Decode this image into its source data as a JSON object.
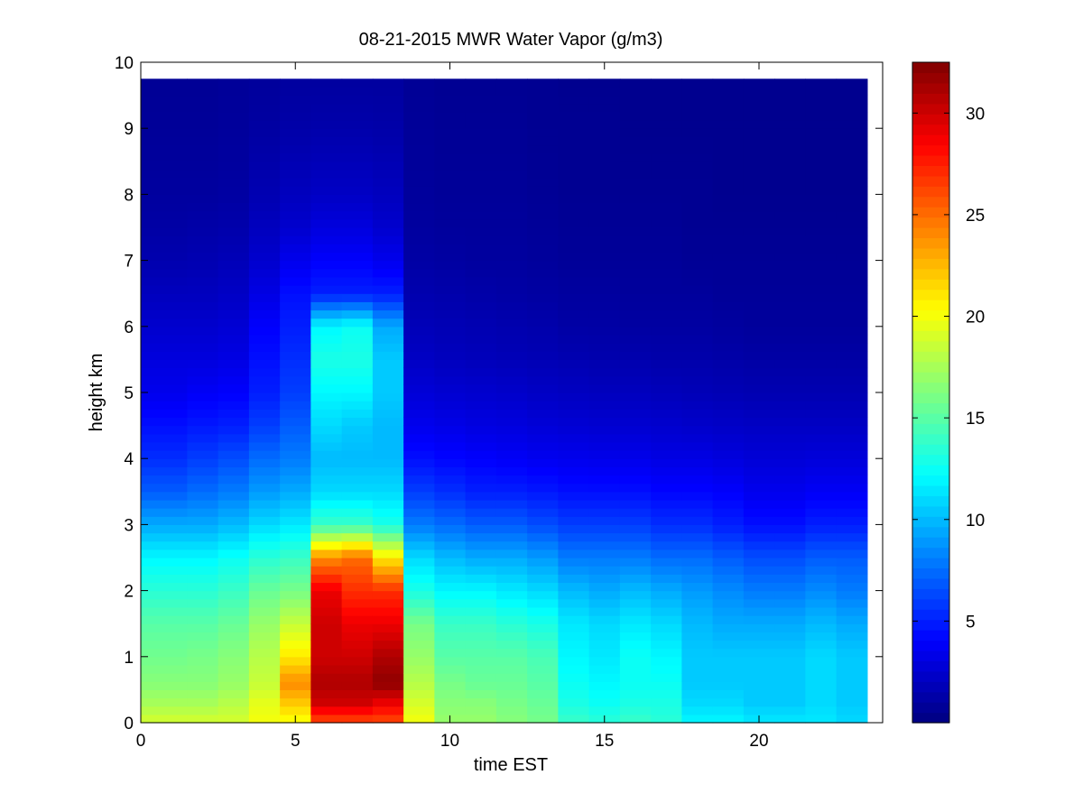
{
  "chart_data": {
    "type": "heatmap",
    "title": "08-21-2015 MWR Water Vapor (g/m3)",
    "xlabel": "time EST",
    "ylabel": "height km",
    "xlim": [
      0,
      24
    ],
    "ylim": [
      0,
      10
    ],
    "x_ticks": [
      0,
      5,
      10,
      15,
      20
    ],
    "y_ticks": [
      0,
      1,
      2,
      3,
      4,
      5,
      6,
      7,
      8,
      9,
      10
    ],
    "colorbar": {
      "colormap": "jet",
      "clim": [
        0,
        32.5
      ],
      "ticks": [
        5,
        10,
        15,
        20,
        25,
        30
      ]
    },
    "time_columns": [
      {
        "t0": 0.0,
        "t1": 1.5
      },
      {
        "t0": 1.5,
        "t1": 2.5
      },
      {
        "t0": 2.5,
        "t1": 3.5
      },
      {
        "t0": 3.5,
        "t1": 4.5
      },
      {
        "t0": 4.5,
        "t1": 5.5
      },
      {
        "t0": 5.5,
        "t1": 6.5
      },
      {
        "t0": 6.5,
        "t1": 7.5
      },
      {
        "t0": 7.5,
        "t1": 8.5
      },
      {
        "t0": 8.5,
        "t1": 9.5
      },
      {
        "t0": 9.5,
        "t1": 10.5
      },
      {
        "t0": 10.5,
        "t1": 11.5
      },
      {
        "t0": 11.5,
        "t1": 12.5
      },
      {
        "t0": 12.5,
        "t1": 13.5
      },
      {
        "t0": 13.5,
        "t1": 14.5
      },
      {
        "t0": 14.5,
        "t1": 15.5
      },
      {
        "t0": 15.5,
        "t1": 16.5
      },
      {
        "t0": 16.5,
        "t1": 17.5
      },
      {
        "t0": 17.5,
        "t1": 18.5
      },
      {
        "t0": 18.5,
        "t1": 19.5
      },
      {
        "t0": 19.5,
        "t1": 20.5
      },
      {
        "t0": 20.5,
        "t1": 21.5
      },
      {
        "t0": 21.5,
        "t1": 22.5
      },
      {
        "t0": 22.5,
        "t1": 23.5
      }
    ],
    "height_profile_km": [
      0,
      0.3,
      0.6,
      1.0,
      1.5,
      2.0,
      2.5,
      3.0,
      3.5,
      4.0,
      4.5,
      5.0,
      5.5,
      6.0,
      6.5,
      7.0,
      7.5,
      8.0,
      9.0,
      9.75
    ],
    "water_vapor_profiles": [
      [
        19,
        17.5,
        16.5,
        15.8,
        15,
        13.5,
        12,
        9.5,
        7,
        5.5,
        4.5,
        3.5,
        3,
        2.5,
        2,
        1.5,
        1.2,
        1,
        0.8,
        0.7
      ],
      [
        19,
        17.5,
        16.5,
        16,
        15,
        13.5,
        12,
        9.5,
        7.5,
        6,
        4.8,
        3.8,
        3,
        2.5,
        2,
        1.6,
        1.3,
        1,
        0.8,
        0.7
      ],
      [
        19,
        18,
        17,
        16.5,
        15.5,
        14,
        12.5,
        10,
        8,
        6.5,
        5,
        4,
        3.2,
        2.7,
        2.2,
        1.8,
        1.4,
        1.1,
        0.9,
        0.8
      ],
      [
        20,
        19.5,
        18.5,
        18,
        17,
        15.5,
        13.5,
        11,
        9,
        7.5,
        6,
        5,
        4.5,
        4,
        3.2,
        2.5,
        2,
        1.6,
        1.1,
        0.9
      ],
      [
        20,
        22,
        24,
        21,
        18.5,
        16,
        14,
        11.5,
        9.5,
        8,
        7,
        6,
        5.5,
        5,
        4.5,
        3.5,
        2.5,
        2,
        1.3,
        1
      ],
      [
        26,
        30,
        31,
        30,
        30,
        29,
        24,
        14,
        11,
        10,
        11,
        12,
        13,
        12,
        5,
        4,
        3,
        2.2,
        1.4,
        1
      ],
      [
        26,
        30,
        31,
        30,
        29,
        27,
        25,
        14,
        11,
        10,
        10.5,
        12,
        13,
        12.5,
        5,
        4,
        3,
        2.2,
        1.4,
        1
      ],
      [
        26,
        29,
        32,
        31,
        29,
        27,
        21,
        13,
        11,
        10,
        10,
        10.5,
        10.5,
        9.5,
        5,
        3.5,
        2.5,
        2,
        1.3,
        1
      ],
      [
        20,
        19,
        18,
        17,
        16,
        13,
        11,
        8,
        6,
        4.5,
        3.5,
        2.8,
        2.2,
        1.8,
        1.5,
        1.2,
        1,
        0.9,
        0.8,
        0.7
      ],
      [
        17,
        16.5,
        16,
        15,
        14,
        12,
        10,
        7.5,
        5.5,
        4.2,
        3.3,
        2.6,
        2,
        1.7,
        1.4,
        1.1,
        0.9,
        0.8,
        0.7,
        0.6
      ],
      [
        17,
        16.5,
        15.5,
        15,
        14,
        12,
        9.5,
        7,
        5,
        4,
        3.1,
        2.5,
        1.9,
        1.6,
        1.3,
        1,
        0.9,
        0.8,
        0.7,
        0.6
      ],
      [
        16.5,
        16,
        15.5,
        15,
        13.5,
        11.5,
        9.5,
        7,
        5,
        3.8,
        3,
        2.4,
        1.8,
        1.5,
        1.2,
        1,
        0.9,
        0.8,
        0.7,
        0.6
      ],
      [
        16,
        15.5,
        15,
        14.5,
        13,
        11,
        9,
        6.5,
        4.8,
        3.6,
        2.8,
        2.2,
        1.7,
        1.4,
        1.1,
        0.9,
        0.8,
        0.7,
        0.6,
        0.6
      ],
      [
        14,
        13,
        12.5,
        12,
        11.5,
        10,
        8,
        6,
        4.5,
        3.5,
        2.7,
        2.1,
        1.6,
        1.2,
        1,
        0.8,
        0.7,
        0.6,
        0.6,
        0.5
      ],
      [
        13.5,
        12.5,
        12,
        11.5,
        11,
        9.5,
        8,
        6,
        4.5,
        3.4,
        2.6,
        2,
        1.5,
        1.2,
        1,
        0.8,
        0.7,
        0.6,
        0.6,
        0.5
      ],
      [
        14,
        13,
        12.5,
        12.5,
        11.5,
        10,
        8,
        6,
        4.5,
        3.4,
        2.6,
        2,
        1.5,
        1.1,
        0.9,
        0.8,
        0.7,
        0.6,
        0.5,
        0.5
      ],
      [
        13.5,
        13,
        12.5,
        12,
        11,
        9.5,
        7.5,
        5.5,
        4.2,
        3.2,
        2.5,
        1.9,
        1.4,
        1.1,
        0.9,
        0.8,
        0.7,
        0.6,
        0.5,
        0.5
      ],
      [
        12,
        11,
        10.5,
        10.5,
        10,
        9,
        7.5,
        5.5,
        4.2,
        3.2,
        2.4,
        1.8,
        1.4,
        1.1,
        0.9,
        0.7,
        0.6,
        0.6,
        0.5,
        0.5
      ],
      [
        12,
        11,
        10.5,
        10.5,
        9.5,
        8.5,
        7,
        5,
        4,
        3,
        2.3,
        1.7,
        1.3,
        1,
        0.8,
        0.7,
        0.6,
        0.5,
        0.5,
        0.5
      ],
      [
        11.5,
        10.5,
        10.5,
        10.5,
        9.5,
        8,
        6.5,
        4.5,
        3.5,
        2.8,
        2.2,
        1.6,
        1.2,
        0.9,
        0.8,
        0.7,
        0.6,
        0.5,
        0.5,
        0.5
      ],
      [
        11.5,
        10.5,
        10.5,
        10.5,
        9.5,
        8,
        6.5,
        4.5,
        3.5,
        2.8,
        2.2,
        1.6,
        1.2,
        0.9,
        0.8,
        0.7,
        0.6,
        0.5,
        0.5,
        0.5
      ],
      [
        11.5,
        11,
        11,
        11,
        10,
        8.5,
        7,
        5,
        3.8,
        2.9,
        2.2,
        1.6,
        1.2,
        0.9,
        0.8,
        0.7,
        0.6,
        0.5,
        0.5,
        0.5
      ],
      [
        11,
        10.5,
        10.5,
        10.5,
        9.5,
        8,
        7,
        5,
        3.8,
        2.9,
        2.2,
        1.6,
        1.2,
        0.9,
        0.8,
        0.7,
        0.6,
        0.5,
        0.5,
        0.5
      ]
    ]
  }
}
